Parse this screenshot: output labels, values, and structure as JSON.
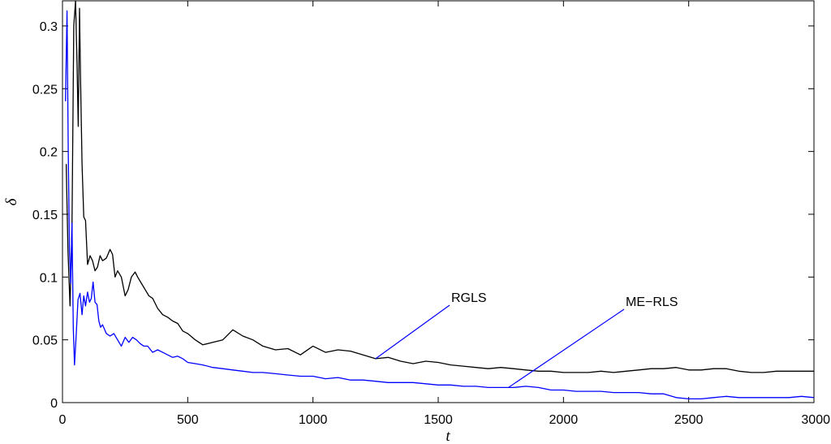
{
  "chart_data": {
    "type": "line",
    "title": "",
    "xlabel": "t",
    "ylabel": "δ",
    "xlim": [
      0,
      3000
    ],
    "ylim": [
      0,
      0.32
    ],
    "xticks": [
      0,
      500,
      1000,
      1500,
      2000,
      2500,
      3000
    ],
    "xtick_labels": [
      "0",
      "500",
      "1000",
      "1500",
      "2000",
      "2500",
      "3000"
    ],
    "yticks": [
      0,
      0.05,
      0.1,
      0.15,
      0.2,
      0.25,
      0.3
    ],
    "ytick_labels": [
      "0",
      "0.05",
      "0.1",
      "0.15",
      "0.2",
      "0.25",
      "0.3"
    ],
    "grid": false,
    "legend": "none",
    "series": [
      {
        "name": "RGLS",
        "color": "#000000",
        "x": [
          15,
          22,
          30,
          38,
          45,
          52,
          58,
          63,
          68,
          72,
          78,
          85,
          92,
          100,
          110,
          120,
          130,
          140,
          150,
          160,
          175,
          190,
          200,
          210,
          220,
          235,
          250,
          262,
          275,
          290,
          300,
          315,
          330,
          345,
          360,
          380,
          400,
          420,
          440,
          460,
          480,
          500,
          530,
          560,
          600,
          640,
          680,
          720,
          760,
          800,
          850,
          900,
          950,
          1000,
          1050,
          1100,
          1150,
          1200,
          1250,
          1300,
          1350,
          1400,
          1450,
          1500,
          1550,
          1600,
          1650,
          1700,
          1750,
          1800,
          1850,
          1900,
          1950,
          2000,
          2050,
          2100,
          2150,
          2200,
          2250,
          2300,
          2350,
          2400,
          2450,
          2500,
          2550,
          2600,
          2650,
          2700,
          2750,
          2800,
          2850,
          2900,
          2950,
          3000
        ],
        "values": [
          0.19,
          0.12,
          0.077,
          0.14,
          0.3,
          0.33,
          0.27,
          0.22,
          0.314,
          0.26,
          0.19,
          0.148,
          0.145,
          0.11,
          0.117,
          0.113,
          0.105,
          0.108,
          0.117,
          0.113,
          0.115,
          0.122,
          0.118,
          0.1,
          0.105,
          0.1,
          0.085,
          0.09,
          0.1,
          0.104,
          0.1,
          0.095,
          0.09,
          0.085,
          0.083,
          0.075,
          0.07,
          0.068,
          0.065,
          0.063,
          0.057,
          0.055,
          0.05,
          0.046,
          0.048,
          0.05,
          0.058,
          0.053,
          0.05,
          0.045,
          0.042,
          0.043,
          0.038,
          0.045,
          0.04,
          0.042,
          0.041,
          0.038,
          0.035,
          0.036,
          0.033,
          0.031,
          0.033,
          0.032,
          0.03,
          0.029,
          0.028,
          0.027,
          0.028,
          0.027,
          0.026,
          0.025,
          0.025,
          0.024,
          0.024,
          0.024,
          0.025,
          0.024,
          0.025,
          0.026,
          0.027,
          0.027,
          0.028,
          0.026,
          0.026,
          0.027,
          0.027,
          0.025,
          0.024,
          0.024,
          0.025,
          0.025,
          0.025,
          0.025
        ]
      },
      {
        "name": "ME-RLS",
        "color": "#0000ff",
        "x": [
          12,
          18,
          23,
          28,
          33,
          38,
          43,
          48,
          55,
          62,
          70,
          78,
          85,
          92,
          100,
          108,
          115,
          122,
          130,
          138,
          145,
          152,
          160,
          175,
          190,
          205,
          220,
          235,
          250,
          265,
          280,
          295,
          310,
          325,
          340,
          360,
          380,
          400,
          420,
          440,
          460,
          480,
          500,
          530,
          560,
          600,
          640,
          680,
          720,
          760,
          800,
          850,
          900,
          950,
          1000,
          1050,
          1100,
          1150,
          1200,
          1250,
          1300,
          1350,
          1400,
          1450,
          1500,
          1550,
          1600,
          1650,
          1700,
          1750,
          1800,
          1850,
          1900,
          1950,
          2000,
          2050,
          2100,
          2150,
          2200,
          2250,
          2300,
          2350,
          2400,
          2450,
          2500,
          2550,
          2600,
          2650,
          2700,
          2750,
          2800,
          2850,
          2900,
          2950,
          3000
        ],
        "values": [
          0.24,
          0.312,
          0.2,
          0.12,
          0.095,
          0.143,
          0.06,
          0.03,
          0.055,
          0.082,
          0.087,
          0.07,
          0.085,
          0.077,
          0.088,
          0.08,
          0.083,
          0.096,
          0.08,
          0.078,
          0.065,
          0.06,
          0.062,
          0.055,
          0.053,
          0.055,
          0.05,
          0.045,
          0.052,
          0.048,
          0.052,
          0.05,
          0.047,
          0.045,
          0.045,
          0.04,
          0.042,
          0.04,
          0.038,
          0.036,
          0.037,
          0.035,
          0.032,
          0.031,
          0.03,
          0.028,
          0.027,
          0.026,
          0.025,
          0.024,
          0.024,
          0.023,
          0.022,
          0.021,
          0.021,
          0.019,
          0.02,
          0.018,
          0.018,
          0.017,
          0.016,
          0.016,
          0.016,
          0.015,
          0.014,
          0.014,
          0.013,
          0.013,
          0.012,
          0.012,
          0.012,
          0.013,
          0.012,
          0.01,
          0.01,
          0.009,
          0.009,
          0.009,
          0.008,
          0.008,
          0.008,
          0.007,
          0.007,
          0.004,
          0.003,
          0.003,
          0.004,
          0.005,
          0.004,
          0.004,
          0.004,
          0.004,
          0.004,
          0.005,
          0.004
        ]
      }
    ],
    "annotations": [
      {
        "text": "RGLS",
        "series": 0,
        "at_x": 1250
      },
      {
        "text": "ME−RLS",
        "series": 1,
        "at_x": 1780
      }
    ]
  }
}
